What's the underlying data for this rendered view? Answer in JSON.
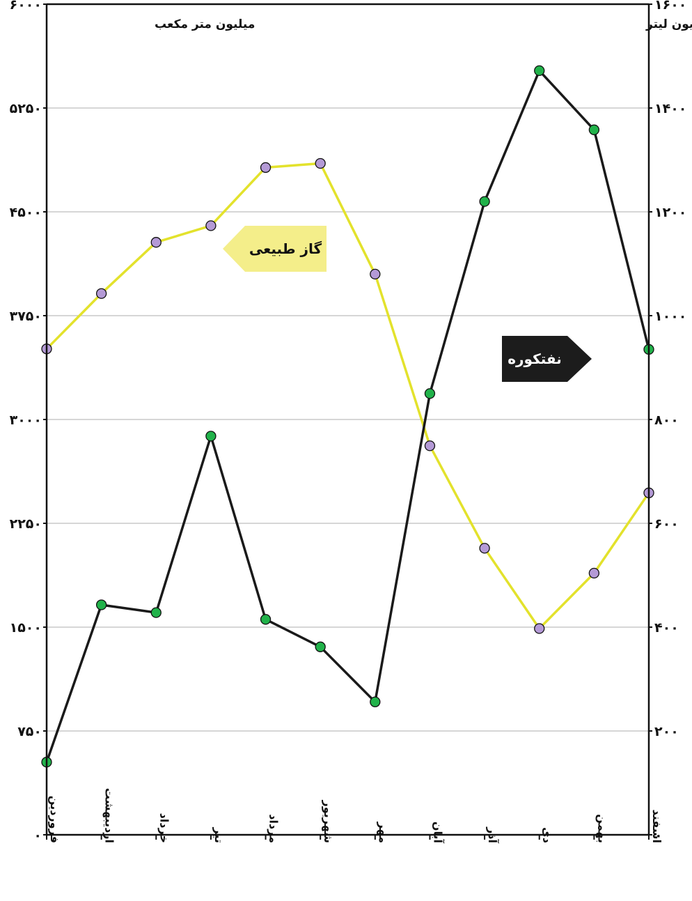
{
  "chart_data": {
    "type": "line",
    "categories": [
      "فروردین",
      "اردیبهشت",
      "خرداد",
      "تیر",
      "مرداد",
      "شهریور",
      "مهر",
      "آبان",
      "آذر",
      "دی",
      "بهمن",
      "اسفند"
    ],
    "left_axis": {
      "unit_label": "میلیون متر مکعب",
      "ylim": [
        0,
        6000
      ],
      "tick_values": [
        0,
        750,
        1500,
        2250,
        3000,
        3750,
        4500,
        5250,
        6000
      ],
      "tick_labels": [
        "۰",
        "۷۵۰",
        "۱۵۰۰",
        "۲۲۵۰",
        "۳۰۰۰",
        "۳۷۵۰",
        "۴۵۰۰",
        "۵۲۵۰",
        "۶۰۰۰"
      ]
    },
    "right_axis": {
      "unit_label": "میلیون لیتر",
      "ylim": [
        0,
        1600
      ],
      "tick_values": [
        0,
        200,
        400,
        600,
        800,
        1000,
        1200,
        1400,
        1600
      ],
      "tick_labels": [
        "۰",
        "۲۰۰",
        "۴۰۰",
        "۶۰۰",
        "۸۰۰",
        "۱۰۰۰",
        "۱۲۰۰",
        "۱۴۰۰",
        "۱۶۰۰"
      ]
    },
    "series": [
      {
        "name": "گاز طبیعی",
        "axis": "left",
        "line_color": "#e3e22c",
        "marker_color": "#b49ad6",
        "values": [
          3510,
          3910,
          4280,
          4400,
          4820,
          4850,
          4050,
          2810,
          2070,
          1490,
          1890,
          2470
        ]
      },
      {
        "name": "نفتکوره",
        "axis": "right",
        "line_color": "#1a1a1a",
        "marker_color": "#21b24a",
        "values": [
          140,
          443,
          428,
          768,
          415,
          362,
          256,
          850,
          1220,
          1472,
          1358,
          935
        ]
      }
    ],
    "grid": true,
    "legend": "inline-tags"
  },
  "colors": {
    "gas_tag_bg": "#f4ee8a",
    "oil_tag_bg": "#1c1c1c",
    "oil_tag_text": "#ffffff",
    "gas_tag_text": "#111111",
    "gridline": "#bdbdbd",
    "axis": "#111111"
  }
}
